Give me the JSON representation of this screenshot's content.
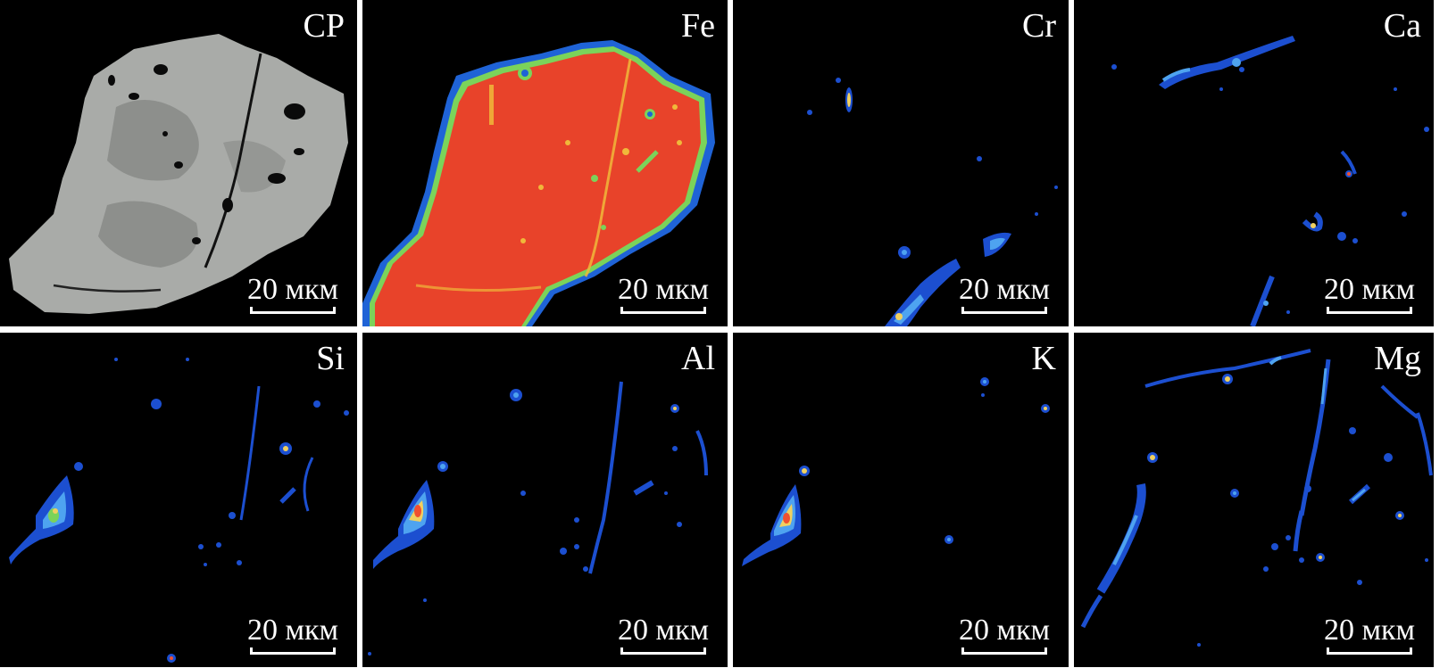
{
  "figure": {
    "scale_text": "20 мкм",
    "panels": [
      {
        "id": "cp",
        "label": "CP",
        "kind": "backscatter",
        "colors": {
          "grain": "#a9aba8",
          "dark": "#828482",
          "pore": "#0a0a0a"
        }
      },
      {
        "id": "fe",
        "label": "Fe",
        "kind": "element-map",
        "colors": {
          "fill": "#e8432a",
          "rim": "#1f63d6",
          "edge": "#7bd35a",
          "speck": "#f0b83a"
        }
      },
      {
        "id": "cr",
        "label": "Cr",
        "kind": "element-map",
        "colors": {
          "low": "#1c4fd0",
          "mid": "#4ea3f0",
          "high": "#f0d060"
        }
      },
      {
        "id": "ca",
        "label": "Ca",
        "kind": "element-map",
        "colors": {
          "low": "#1c4fd0",
          "mid": "#4ea3f0",
          "high": "#f0d060"
        }
      },
      {
        "id": "si",
        "label": "Si",
        "kind": "element-map",
        "colors": {
          "low": "#1c4fd0",
          "mid": "#4ea3f0",
          "high": "#f0d060"
        }
      },
      {
        "id": "al",
        "label": "Al",
        "kind": "element-map",
        "colors": {
          "low": "#1c4fd0",
          "mid": "#4ea3f0",
          "high": "#f05030"
        }
      },
      {
        "id": "k",
        "label": "K",
        "kind": "element-map",
        "colors": {
          "low": "#1c4fd0",
          "mid": "#4ea3f0",
          "high": "#f05030"
        }
      },
      {
        "id": "mg",
        "label": "Mg",
        "kind": "element-map",
        "colors": {
          "low": "#1c4fd0",
          "mid": "#4ea3f0",
          "high": "#f0d060"
        }
      }
    ]
  }
}
